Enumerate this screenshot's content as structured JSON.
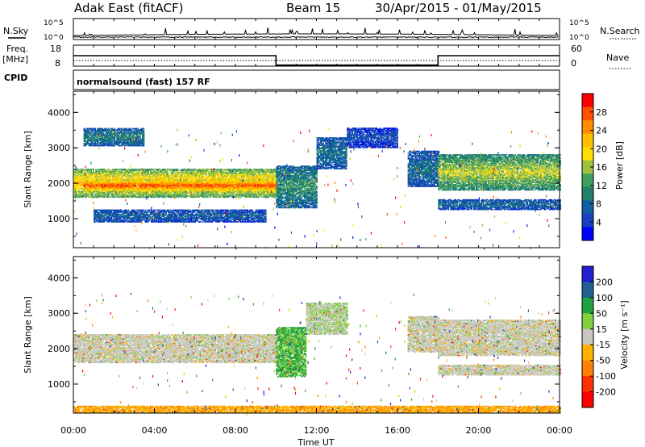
{
  "header": {
    "title": "Adak East (fitACF)",
    "beam": "Beam 15",
    "date_range": "30/Apr/2015 - 01/May/2015"
  },
  "labels": {
    "nsky": "N.Sky",
    "nsearch": "N.Search",
    "freq_line1": "Freq.",
    "freq_line2": "[MHz]",
    "nave": "Nave",
    "cpid": "CPID",
    "mode": "normalsound (fast) 157 RF",
    "ylabel": "Slant Range [km]",
    "xlabel": "Time UT",
    "power_label": "Power [dB]",
    "velocity_label": "Velocity [m s⁻¹]"
  },
  "axes": {
    "x_ticks": [
      "00:00",
      "04:00",
      "08:00",
      "12:00",
      "16:00",
      "20:00",
      "00:00"
    ],
    "y_ticks": [
      "1000",
      "2000",
      "3000",
      "4000"
    ],
    "y_range_km": [
      180,
      4600
    ],
    "x_range_hours": [
      0,
      24
    ],
    "noise_ticks_left": [
      "10^5",
      "10^0"
    ],
    "noise_ticks_right": [
      "10^5",
      "10^0"
    ],
    "freq_ticks": [
      "18",
      "8"
    ],
    "nave_ticks": [
      "60",
      "0"
    ]
  },
  "colorbars": {
    "power": {
      "ticks": [
        "28",
        "24",
        "20",
        "16",
        "12",
        "8",
        "4"
      ],
      "colors": [
        "#ff0000",
        "#ff5000",
        "#ff8c00",
        "#ffc000",
        "#ffe000",
        "#a0c040",
        "#40a060",
        "#20806a",
        "#1060a0",
        "#1840c0",
        "#0000ff"
      ]
    },
    "velocity": {
      "ticks": [
        "200",
        "100",
        "50",
        "15",
        "-15",
        "-50",
        "-100",
        "-200"
      ],
      "colors": [
        "#2020d0",
        "#206090",
        "#20a040",
        "#80d040",
        "#c8c8c0",
        "#ffb000",
        "#ff8000",
        "#ff3000",
        "#ff0000"
      ]
    }
  },
  "chart_data": [
    {
      "type": "heatmap",
      "name": "power",
      "x_unit": "hours UT",
      "y_unit": "km",
      "bands": [
        {
          "t0": 0.0,
          "t1": 10.0,
          "r0": 1600,
          "r1": 2400,
          "level": 0.72
        },
        {
          "t0": 0.5,
          "t1": 10.0,
          "r0": 1750,
          "r1": 2100,
          "level": 0.93
        },
        {
          "t0": 10.0,
          "t1": 12.0,
          "r0": 1300,
          "r1": 2500,
          "level": 0.35
        },
        {
          "t0": 12.0,
          "t1": 13.5,
          "r0": 2400,
          "r1": 3300,
          "level": 0.25
        },
        {
          "t0": 13.5,
          "t1": 16.0,
          "r0": 3000,
          "r1": 3550,
          "level": 0.15
        },
        {
          "t0": 16.5,
          "t1": 18.0,
          "r0": 1900,
          "r1": 2900,
          "level": 0.25
        },
        {
          "t0": 18.0,
          "t1": 24.0,
          "r0": 1800,
          "r1": 2800,
          "level": 0.55
        },
        {
          "t0": 18.0,
          "t1": 24.0,
          "r0": 1250,
          "r1": 1550,
          "level": 0.22
        },
        {
          "t0": 0.5,
          "t1": 3.5,
          "r0": 3050,
          "r1": 3550,
          "level": 0.3
        },
        {
          "t0": 1.0,
          "t1": 9.5,
          "r0": 900,
          "r1": 1250,
          "level": 0.2
        }
      ]
    },
    {
      "type": "heatmap",
      "name": "velocity",
      "x_unit": "hours UT",
      "y_unit": "km",
      "bands": [
        {
          "t0": 0.0,
          "t1": 10.0,
          "r0": 1600,
          "r1": 2400,
          "level": 0.5
        },
        {
          "t0": 10.0,
          "t1": 11.5,
          "r0": 1200,
          "r1": 2600,
          "level": 0.7
        },
        {
          "t0": 11.5,
          "t1": 13.5,
          "r0": 2400,
          "r1": 3300,
          "level": 0.55
        },
        {
          "t0": 16.5,
          "t1": 18.0,
          "r0": 1900,
          "r1": 2900,
          "level": 0.5
        },
        {
          "t0": 18.0,
          "t1": 24.0,
          "r0": 1800,
          "r1": 2800,
          "level": 0.5
        },
        {
          "t0": 18.0,
          "t1": 24.0,
          "r0": 1250,
          "r1": 1550,
          "level": 0.5
        },
        {
          "t0": 0.0,
          "t1": 24.0,
          "r0": 180,
          "r1": 380,
          "level": 0.35
        }
      ]
    }
  ],
  "freq_trace": [
    {
      "t0": 0.0,
      "t1": 10.0,
      "value": 13
    },
    {
      "t0": 10.0,
      "t1": 18.0,
      "value": 8.5
    },
    {
      "t0": 18.0,
      "t1": 24.0,
      "value": 13
    }
  ]
}
